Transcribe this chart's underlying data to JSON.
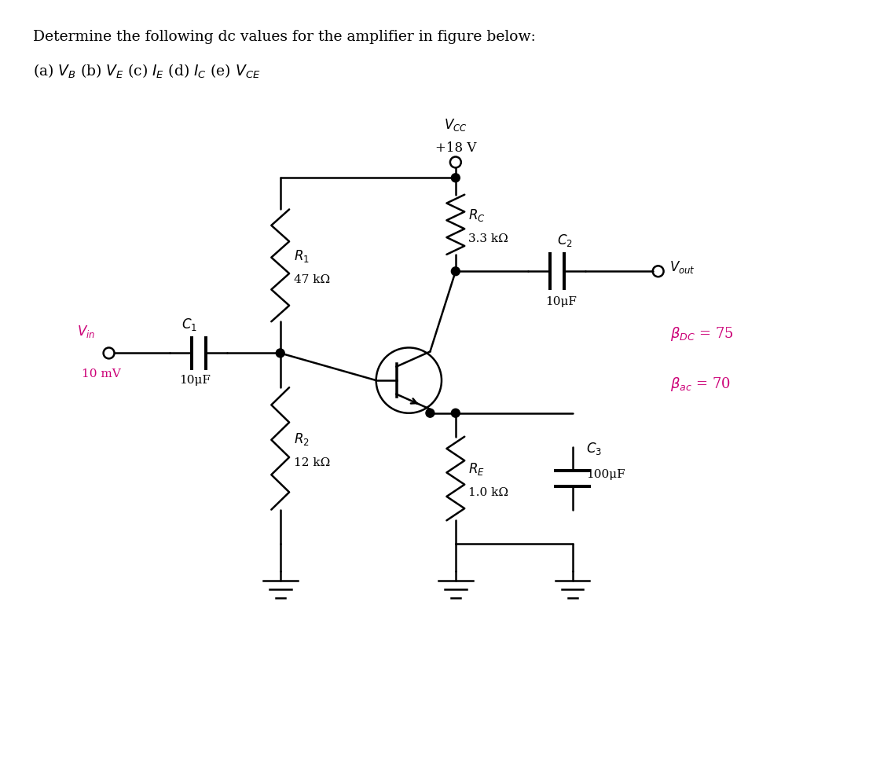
{
  "bg_color": "#ffffff",
  "text_color": "#000000",
  "pink_color": "#cc0077",
  "title_line1": "Determine the following dc values for the amplifier in figure below:",
  "title_line2": "(a) $V_B$ (b) $V_E$ (c) $I_E$ (d) $I_C$ (e) $V_{CE}$",
  "vcc_text1": "$V_{CC}$",
  "vcc_text2": "+18 V",
  "rc_label": "$R_C$",
  "rc_value": "3.3 kΩ",
  "r1_label": "$R_1$",
  "r1_value": "47 kΩ",
  "r2_label": "$R_2$",
  "r2_value": "12 kΩ",
  "re_label": "$R_E$",
  "re_value": "1.0 kΩ",
  "c1_label": "$C_1$",
  "c1_value": "10μF",
  "c2_label": "$C_2$",
  "c2_value": "10μF",
  "c3_label": "$C_3$",
  "c3_value": "100μF",
  "vin_label": "$V_{in}$",
  "vin_value": "10 mV",
  "vout_label": "$V_{out}$",
  "beta_dc": "$\\beta_{DC}$ = 75",
  "beta_ac": "$\\beta_{ac}$ = 70",
  "lw": 1.8
}
